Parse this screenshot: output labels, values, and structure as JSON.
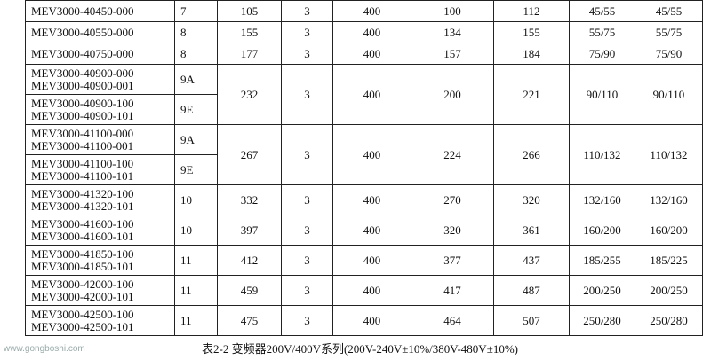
{
  "table": {
    "rows": [
      {
        "subrows": [
          {
            "model": [
              "MEV3000-40450-000"
            ],
            "frame": "7"
          }
        ],
        "cells": [
          "105",
          "3",
          "400",
          "100",
          "112",
          "45/55",
          "45/55"
        ]
      },
      {
        "subrows": [
          {
            "model": [
              "MEV3000-40550-000"
            ],
            "frame": "8"
          }
        ],
        "cells": [
          "155",
          "3",
          "400",
          "134",
          "155",
          "55/75",
          "55/75"
        ]
      },
      {
        "subrows": [
          {
            "model": [
              "MEV3000-40750-000"
            ],
            "frame": "8"
          }
        ],
        "cells": [
          "177",
          "3",
          "400",
          "157",
          "184",
          "75/90",
          "75/90"
        ]
      },
      {
        "subrows": [
          {
            "model": [
              "MEV3000-40900-000",
              "MEV3000-40900-001"
            ],
            "frame": "9A"
          },
          {
            "model": [
              "MEV3000-40900-100",
              "MEV3000-40900-101"
            ],
            "frame": "9E"
          }
        ],
        "cells": [
          "232",
          "3",
          "400",
          "200",
          "221",
          "90/110",
          "90/110"
        ]
      },
      {
        "subrows": [
          {
            "model": [
              "MEV3000-41100-000",
              "MEV3000-41100-001"
            ],
            "frame": "9A"
          },
          {
            "model": [
              "MEV3000-41100-100",
              "MEV3000-41100-101"
            ],
            "frame": "9E"
          }
        ],
        "cells": [
          "267",
          "3",
          "400",
          "224",
          "266",
          "110/132",
          "110/132"
        ]
      },
      {
        "subrows": [
          {
            "model": [
              "MEV3000-41320-100",
              "MEV3000-41320-101"
            ],
            "frame": "10"
          }
        ],
        "cells": [
          "332",
          "3",
          "400",
          "270",
          "320",
          "132/160",
          "132/160"
        ]
      },
      {
        "subrows": [
          {
            "model": [
              "MEV3000-41600-100",
              "MEV3000-41600-101"
            ],
            "frame": "10"
          }
        ],
        "cells": [
          "397",
          "3",
          "400",
          "320",
          "361",
          "160/200",
          "160/200"
        ]
      },
      {
        "subrows": [
          {
            "model": [
              "MEV3000-41850-100",
              "MEV3000-41850-101"
            ],
            "frame": "11"
          }
        ],
        "cells": [
          "412",
          "3",
          "400",
          "377",
          "437",
          "185/255",
          "185/225"
        ]
      },
      {
        "subrows": [
          {
            "model": [
              "MEV3000-42000-100",
              "MEV3000-42000-101"
            ],
            "frame": "11"
          }
        ],
        "cells": [
          "459",
          "3",
          "400",
          "417",
          "487",
          "200/250",
          "200/250"
        ]
      },
      {
        "subrows": [
          {
            "model": [
              "MEV3000-42500-100",
              "MEV3000-42500-101"
            ],
            "frame": "11"
          }
        ],
        "cells": [
          "475",
          "3",
          "400",
          "464",
          "507",
          "250/280",
          "250/280"
        ]
      }
    ]
  },
  "caption": "表2-2 变频器200V/400V系列(200V-240V±10%/380V-480V±10%)",
  "watermark": "www.gongboshi.com"
}
